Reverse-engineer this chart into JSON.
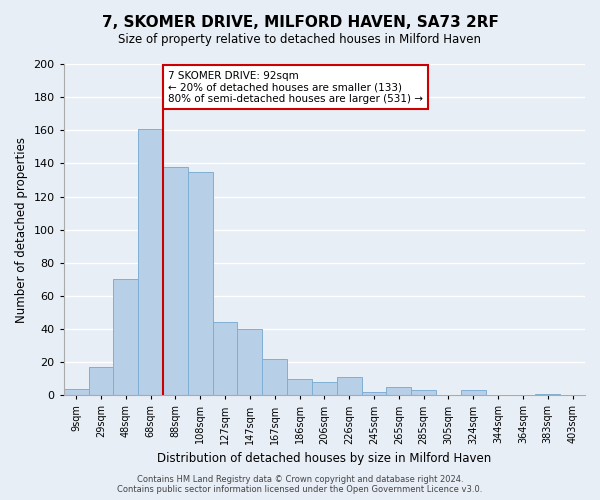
{
  "title": "7, SKOMER DRIVE, MILFORD HAVEN, SA73 2RF",
  "subtitle": "Size of property relative to detached houses in Milford Haven",
  "xlabel": "Distribution of detached houses by size in Milford Haven",
  "ylabel": "Number of detached properties",
  "bar_labels": [
    "9sqm",
    "29sqm",
    "48sqm",
    "68sqm",
    "88sqm",
    "108sqm",
    "127sqm",
    "147sqm",
    "167sqm",
    "186sqm",
    "206sqm",
    "226sqm",
    "245sqm",
    "265sqm",
    "285sqm",
    "305sqm",
    "324sqm",
    "344sqm",
    "364sqm",
    "383sqm",
    "403sqm"
  ],
  "bar_values": [
    4,
    17,
    70,
    161,
    138,
    135,
    44,
    40,
    22,
    10,
    8,
    11,
    2,
    5,
    3,
    0,
    3,
    0,
    0,
    1,
    0
  ],
  "bar_color": "#b8cfe8",
  "bar_edge_color": "#7fafd4",
  "vline_x": 4,
  "vline_color": "#cc0000",
  "annotation_title": "7 SKOMER DRIVE: 92sqm",
  "annotation_line1": "← 20% of detached houses are smaller (133)",
  "annotation_line2": "80% of semi-detached houses are larger (531) →",
  "annotation_box_edge": "#cc0000",
  "ylim": [
    0,
    200
  ],
  "yticks": [
    0,
    20,
    40,
    60,
    80,
    100,
    120,
    140,
    160,
    180,
    200
  ],
  "footer1": "Contains HM Land Registry data © Crown copyright and database right 2024.",
  "footer2": "Contains public sector information licensed under the Open Government Licence v3.0.",
  "bg_color": "#e8eef6",
  "grid_color": "#ffffff"
}
